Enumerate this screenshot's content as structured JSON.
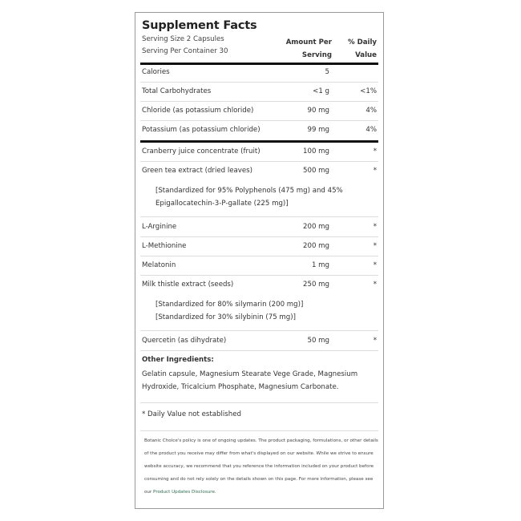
{
  "title": "Supplement Facts",
  "serving_size": "Serving Size 2 Capsules",
  "servings_per_container": "Serving Per Container 30",
  "columns": {
    "amount_line1": "Amount Per",
    "amount_line2": "Serving",
    "dv_line1": "% Daily",
    "dv_line2": "Value"
  },
  "nutrients": [
    {
      "name": "Calories",
      "amount": "5",
      "dv": ""
    },
    {
      "name": "Total Carbohydrates",
      "amount": "<1 g",
      "dv": "<1%"
    },
    {
      "name": "Chloride (as potassium chloride)",
      "amount": "90 mg",
      "dv": "4%"
    },
    {
      "name": "Potassium (as potassium chloride)",
      "amount": "99 mg",
      "dv": "4%"
    }
  ],
  "ingredients": [
    {
      "name": "Cranberry juice concentrate (fruit)",
      "amount": "100 mg",
      "dv": "*"
    },
    {
      "name": "Green tea extract (dried leaves)",
      "amount": "500 mg",
      "dv": "*",
      "notes": [
        "[Standardized for 95% Polyphenols (475 mg) and 45%",
        "Epigallocatechin-3-P-gallate (225 mg)]"
      ]
    },
    {
      "name": "L-Arginine",
      "amount": "200 mg",
      "dv": "*"
    },
    {
      "name": "L-Methionine",
      "amount": "200 mg",
      "dv": "*"
    },
    {
      "name": "Melatonin",
      "amount": "1 mg",
      "dv": "*"
    },
    {
      "name": "Milk thistle extract (seeds)",
      "amount": "250 mg",
      "dv": "*",
      "notes": [
        "[Standardized for 80% silymarin (200 mg)]",
        "[Standardized for 30% silybinin (75 mg)]"
      ]
    },
    {
      "name": "Quercetin (as dihydrate)",
      "amount": "50 mg",
      "dv": "*"
    }
  ],
  "other_ingredients": {
    "heading": "Other Ingredients:",
    "lines": [
      "Gelatin capsule, Magnesium Stearate Vege Grade, Magnesium",
      "Hydroxide, Tricalcium Phosphate, Magnesium Carbonate."
    ]
  },
  "daily_value_note": "* Daily Value not established",
  "disclaimer": {
    "lines": [
      "Botanic Choice's policy is one of ongoing updates. The product packaging, formulations, or other details",
      "of the product you receive may differ from what's displayed on our website. While we strive to ensure",
      "website accuracy, we recommend that you reference the information included on your product before",
      "consuming and do not rely solely on the details shown on this page. For more information, please see"
    ],
    "last_prefix": "our ",
    "link_text": "Product Updates Disclosure",
    "last_suffix": "."
  },
  "colors": {
    "link": "#2f6e4e",
    "border": "#9a9a9a",
    "rule": "#dddddd",
    "thick_rule": "#111111"
  }
}
